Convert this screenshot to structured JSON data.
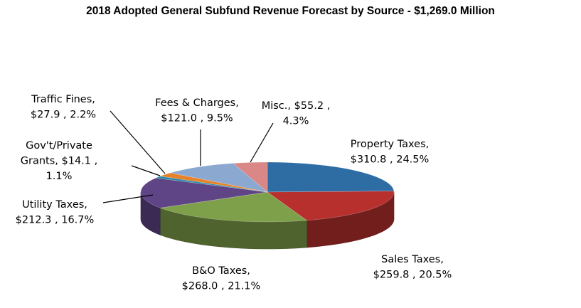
{
  "chart_data": {
    "type": "pie",
    "title": "2018 Adopted General Subfund Revenue Forecast by Source - $1,269.0 Million",
    "total": 1269.0,
    "slices": [
      {
        "name": "Property Taxes",
        "value": 310.8,
        "percent": "24.5%",
        "color": "#2e6da4",
        "label_lines": [
          "Property Taxes,",
          "$310.8 , 24.5%"
        ]
      },
      {
        "name": "Sales Taxes",
        "value": 259.8,
        "percent": "20.5%",
        "color": "#b7302e",
        "label_lines": [
          "Sales Taxes,",
          "$259.8 , 20.5%"
        ]
      },
      {
        "name": "B&O Taxes",
        "value": 268.0,
        "percent": "21.1%",
        "color": "#7fa04a",
        "label_lines": [
          "B&O Taxes,",
          "$268.0 , 21.1%"
        ]
      },
      {
        "name": "Utility Taxes",
        "value": 212.3,
        "percent": "16.7%",
        "color": "#5f4486",
        "label_lines": [
          "Utility Taxes,",
          "$212.3 , 16.7%"
        ]
      },
      {
        "name": "Gov't/Private Grants",
        "value": 14.1,
        "percent": "1.1%",
        "color": "#2a8ba8",
        "label_lines": [
          "Gov't/Private",
          "Grants,  $14.1 ,",
          "1.1%"
        ]
      },
      {
        "name": "Traffic Fines",
        "value": 27.9,
        "percent": "2.2%",
        "color": "#e8822a",
        "label_lines": [
          "Traffic Fines,",
          "$27.9 , 2.2%"
        ]
      },
      {
        "name": "Fees & Charges",
        "value": 121.0,
        "percent": "9.5%",
        "color": "#8aa8d0",
        "label_lines": [
          "Fees & Charges,",
          "$121.0 , 9.5%"
        ]
      },
      {
        "name": "Misc.",
        "value": 55.2,
        "percent": "4.3%",
        "color": "#d98787",
        "label_lines": [
          "Misc.,  $55.2 ,",
          "4.3%"
        ]
      }
    ],
    "legend": "none",
    "labels": "outside-with-leader-lines"
  }
}
